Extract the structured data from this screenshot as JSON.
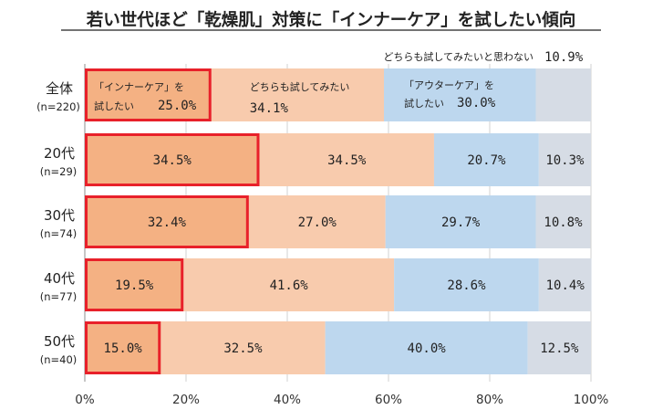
{
  "chart_data": {
    "type": "bar",
    "orientation": "horizontal",
    "stacked": true,
    "title": "若い世代ほど「乾燥肌」対策に「インナーケア」を試したい傾向",
    "categories": [
      "全体",
      "20代",
      "30代",
      "40代",
      "50代"
    ],
    "sample_sizes": [
      "(n=220)",
      "(n=29)",
      "(n=74)",
      "(n=77)",
      "(n=40)"
    ],
    "series": [
      {
        "name": "「インナーケア」を試したい",
        "values": [
          25.0,
          34.5,
          32.4,
          19.5,
          15.0
        ],
        "color": "#f4b183",
        "highlight": "#e8212a"
      },
      {
        "name": "どちらも試してみたい",
        "values": [
          34.1,
          34.5,
          27.0,
          41.6,
          32.5
        ],
        "color": "#f8cbad"
      },
      {
        "name": "「アウターケア」を試したい",
        "values": [
          30.0,
          20.7,
          29.7,
          28.6,
          40.0
        ],
        "color": "#bdd7ee"
      },
      {
        "name": "どちらも試してみたいと思わない",
        "values": [
          10.9,
          10.3,
          10.8,
          10.4,
          12.5
        ],
        "color": "#d6dce5"
      }
    ],
    "segment_labels": {
      "inner_line1": "「インナーケア」を",
      "inner_line2": "試したい",
      "both_line1": "どちらも試してみたい",
      "outer_line1": "「アウターケア」を",
      "outer_line2": "試したい",
      "neither_note": "どちらも試してみたいと思わない"
    },
    "x_ticks": [
      "0%",
      "20%",
      "40%",
      "60%",
      "80%",
      "100%"
    ],
    "xlim": [
      0,
      100
    ],
    "value_format": "%.1f%%"
  }
}
